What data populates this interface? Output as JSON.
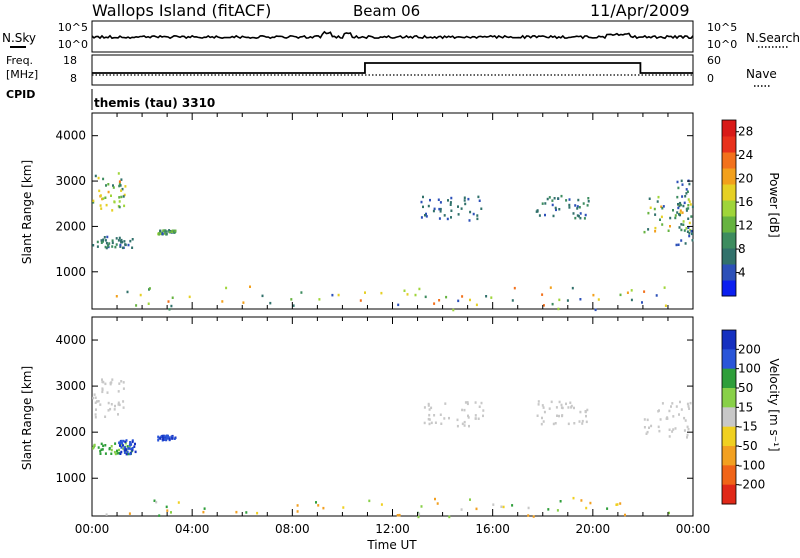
{
  "header": {
    "title": "Wallops Island (fitACF)",
    "beam": "Beam 06",
    "date": "11/Apr/2009"
  },
  "nsky_panel": {
    "left_label": "N.Sky",
    "right_label": "N.Search",
    "left_ticks": [
      "10^5",
      "10^0"
    ],
    "right_ticks": [
      "10^5",
      "10^0"
    ]
  },
  "freq_panel": {
    "left_label_top": "Freq.",
    "left_label_unit": "[MHz]",
    "left_ticks": [
      "18",
      "8"
    ],
    "right_ticks": [
      "60",
      "0"
    ],
    "right_label": "Nave"
  },
  "cpid": {
    "label": "CPID",
    "value": "themis (tau) 3310"
  },
  "chart_data": [
    {
      "type": "heatmap",
      "name_label": "",
      "ylabel": "Slant Range [km]",
      "xlabel": "",
      "ylim": [
        180,
        4500
      ],
      "y_ticks": [
        "4000",
        "3000",
        "2000",
        "1000"
      ],
      "y_tick_values": [
        4000,
        3000,
        2000,
        1000
      ],
      "xlim_hours": [
        0,
        24
      ],
      "colorbar": {
        "label": "Power [dB]",
        "ticks": [
          "28",
          "24",
          "20",
          "16",
          "12",
          "8",
          "4"
        ],
        "tick_values": [
          28,
          24,
          20,
          16,
          12,
          8,
          4
        ],
        "range": [
          0,
          30
        ],
        "colors": [
          "#0b1ff0",
          "#2c50b8",
          "#31716b",
          "#3d8c5f",
          "#66b340",
          "#9fd53a",
          "#e6d024",
          "#f2a01c",
          "#f2711c",
          "#e8311c",
          "#d81a18"
        ]
      },
      "scatter_regions": [
        {
          "t": [
            0.0,
            1.3
          ],
          "r": [
            2300,
            3200
          ],
          "v": [
            6,
            22
          ]
        },
        {
          "t": [
            0.0,
            1.6
          ],
          "r": [
            1550,
            1800
          ],
          "v": [
            4,
            9
          ]
        },
        {
          "t": [
            2.6,
            3.3
          ],
          "r": [
            1850,
            1950
          ],
          "v": [
            4,
            14
          ]
        },
        {
          "t": [
            13.1,
            15.6
          ],
          "r": [
            2150,
            2700
          ],
          "v": [
            4,
            8
          ]
        },
        {
          "t": [
            17.7,
            19.8
          ],
          "r": [
            2200,
            2700
          ],
          "v": [
            4,
            10
          ]
        },
        {
          "t": [
            22.0,
            24.0
          ],
          "r": [
            1900,
            2700
          ],
          "v": [
            4,
            20
          ]
        },
        {
          "t": [
            23.3,
            24.0
          ],
          "r": [
            1600,
            3200
          ],
          "v": [
            4,
            10
          ]
        },
        {
          "t": [
            0.5,
            23.5
          ],
          "r": [
            180,
            700
          ],
          "v": [
            4,
            24
          ]
        }
      ]
    },
    {
      "type": "heatmap",
      "ylabel": "Slant Range [km]",
      "xlabel": "Time UT",
      "ylim": [
        180,
        4500
      ],
      "y_ticks": [
        "4000",
        "3000",
        "2000",
        "1000"
      ],
      "y_tick_values": [
        4000,
        3000,
        2000,
        1000
      ],
      "x_ticks": [
        "00:00",
        "04:00",
        "08:00",
        "12:00",
        "16:00",
        "20:00",
        "00:00"
      ],
      "x_tick_values": [
        0,
        4,
        8,
        12,
        16,
        20,
        24
      ],
      "xlim_hours": [
        0,
        24
      ],
      "colorbar": {
        "label": "Velocity [m s⁻¹]",
        "ticks": [
          "200",
          "100",
          "50",
          "15",
          "-15",
          "-50",
          "-100",
          "-200"
        ],
        "tick_values": [
          200,
          100,
          50,
          15,
          -15,
          -50,
          -100,
          -200
        ],
        "bins": [
          {
            "from": 200,
            "color": "#1530c0"
          },
          {
            "from": 100,
            "color": "#2a55d8"
          },
          {
            "from": 50,
            "color": "#2e9e3a"
          },
          {
            "from": 15,
            "color": "#88d048"
          },
          {
            "from": -15,
            "color": "#c8c8c8"
          },
          {
            "from": -50,
            "color": "#f0d020"
          },
          {
            "from": -100,
            "color": "#f2a020"
          },
          {
            "from": -200,
            "color": "#f06418"
          },
          {
            "from": -300,
            "color": "#e02818"
          }
        ]
      },
      "scatter_regions": [
        {
          "t": [
            0.0,
            1.3
          ],
          "r": [
            2300,
            3200
          ],
          "v": [
            -15,
            15
          ]
        },
        {
          "t": [
            0.0,
            1.6
          ],
          "r": [
            1550,
            1800
          ],
          "v": [
            15,
            100
          ]
        },
        {
          "t": [
            1.0,
            1.7
          ],
          "r": [
            1550,
            1850
          ],
          "v": [
            100,
            250
          ]
        },
        {
          "t": [
            2.6,
            3.3
          ],
          "r": [
            1850,
            1950
          ],
          "v": [
            100,
            250
          ]
        },
        {
          "t": [
            13.1,
            15.6
          ],
          "r": [
            2150,
            2700
          ],
          "v": [
            -15,
            15
          ]
        },
        {
          "t": [
            17.7,
            19.8
          ],
          "r": [
            2200,
            2700
          ],
          "v": [
            -15,
            15
          ]
        },
        {
          "t": [
            22.0,
            24.0
          ],
          "r": [
            1900,
            2700
          ],
          "v": [
            -15,
            15
          ]
        },
        {
          "t": [
            0.5,
            23.5
          ],
          "r": [
            180,
            600
          ],
          "v": [
            -100,
            100
          ]
        }
      ]
    }
  ]
}
